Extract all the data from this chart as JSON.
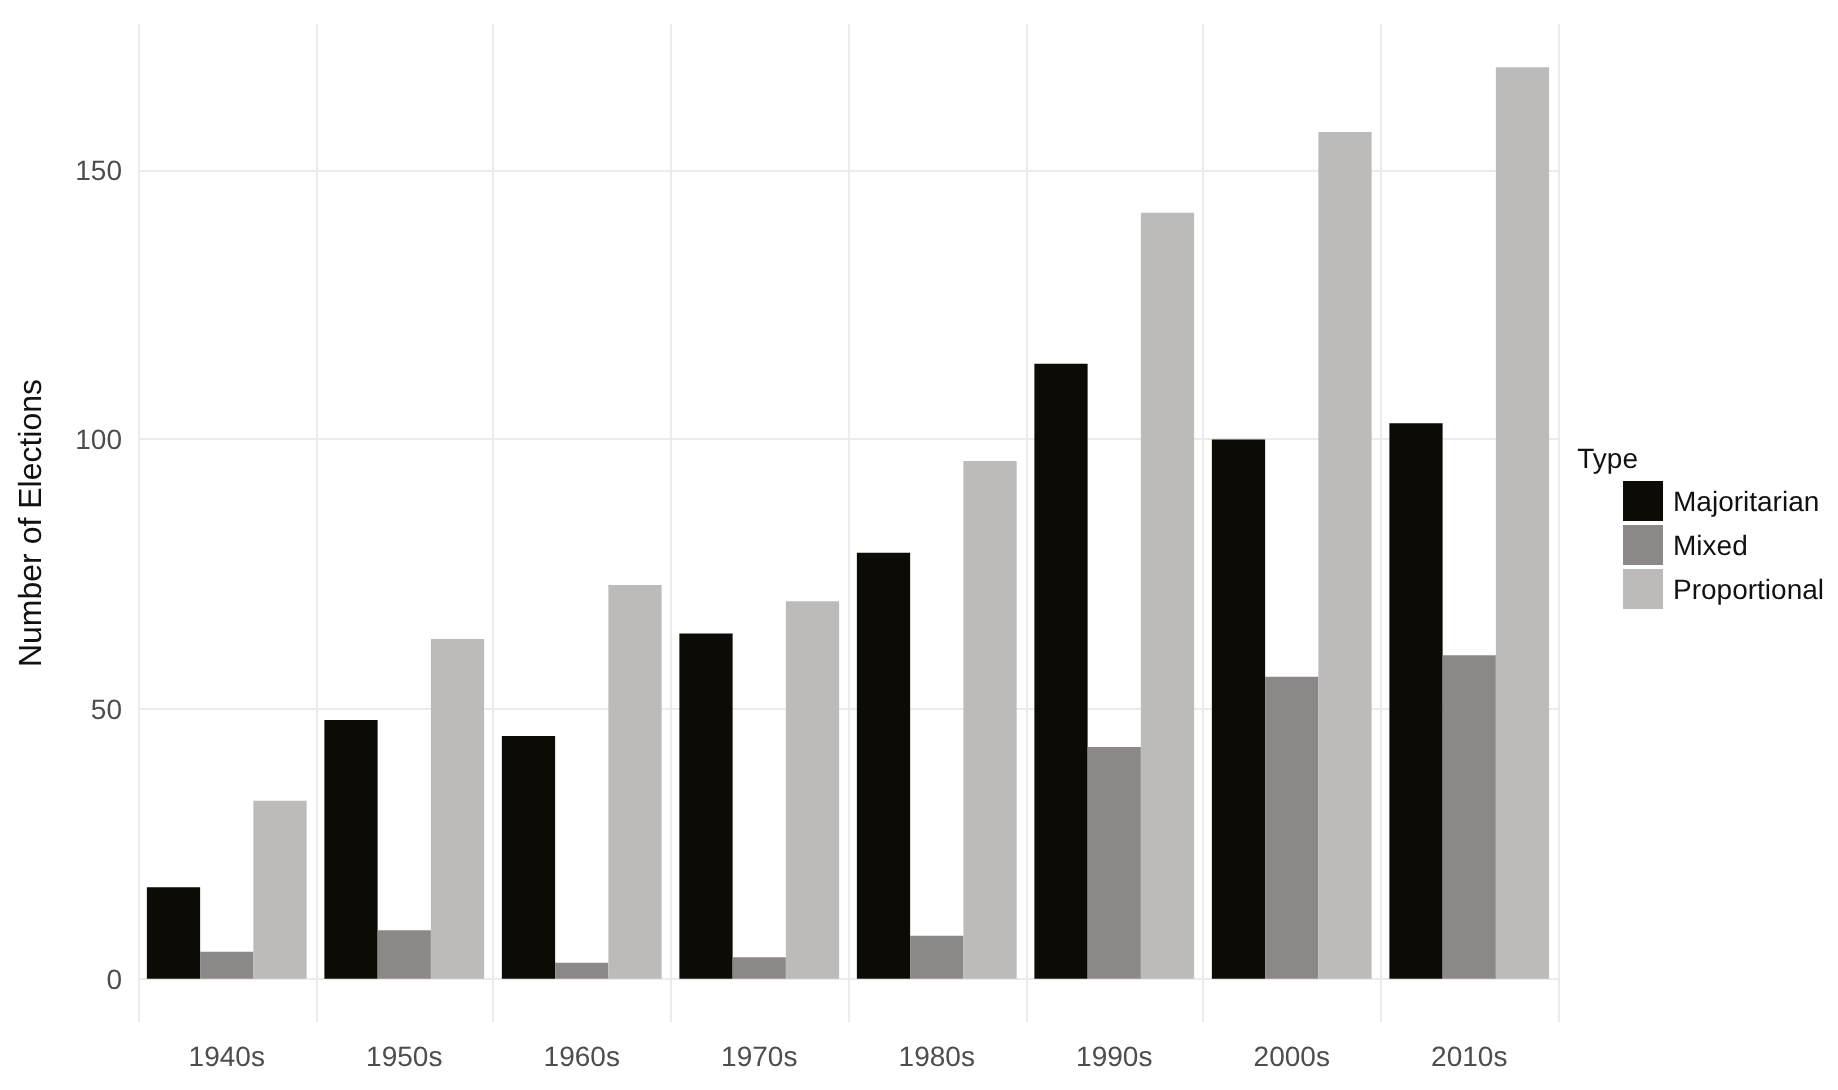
{
  "chart_data": {
    "type": "bar",
    "ylabel": "Number of Elections",
    "legend_title": "Type",
    "categories": [
      "1940s",
      "1950s",
      "1960s",
      "1970s",
      "1980s",
      "1990s",
      "2000s",
      "2010s"
    ],
    "series": [
      {
        "name": "Majoritarian",
        "color": "#0c0b06",
        "values": [
          17,
          48,
          45,
          64,
          79,
          114,
          100,
          103
        ]
      },
      {
        "name": "Mixed",
        "color": "#8c8887",
        "values": [
          5,
          9,
          3,
          4,
          8,
          43,
          56,
          60
        ]
      },
      {
        "name": "Proportional",
        "color": "#bcbbba",
        "values": [
          33,
          63,
          73,
          70,
          96,
          142,
          157,
          169
        ]
      }
    ],
    "ylim": [
      -8,
      177
    ],
    "yticks": [
      0,
      50,
      100,
      150
    ],
    "grid": true,
    "legend": "right"
  }
}
